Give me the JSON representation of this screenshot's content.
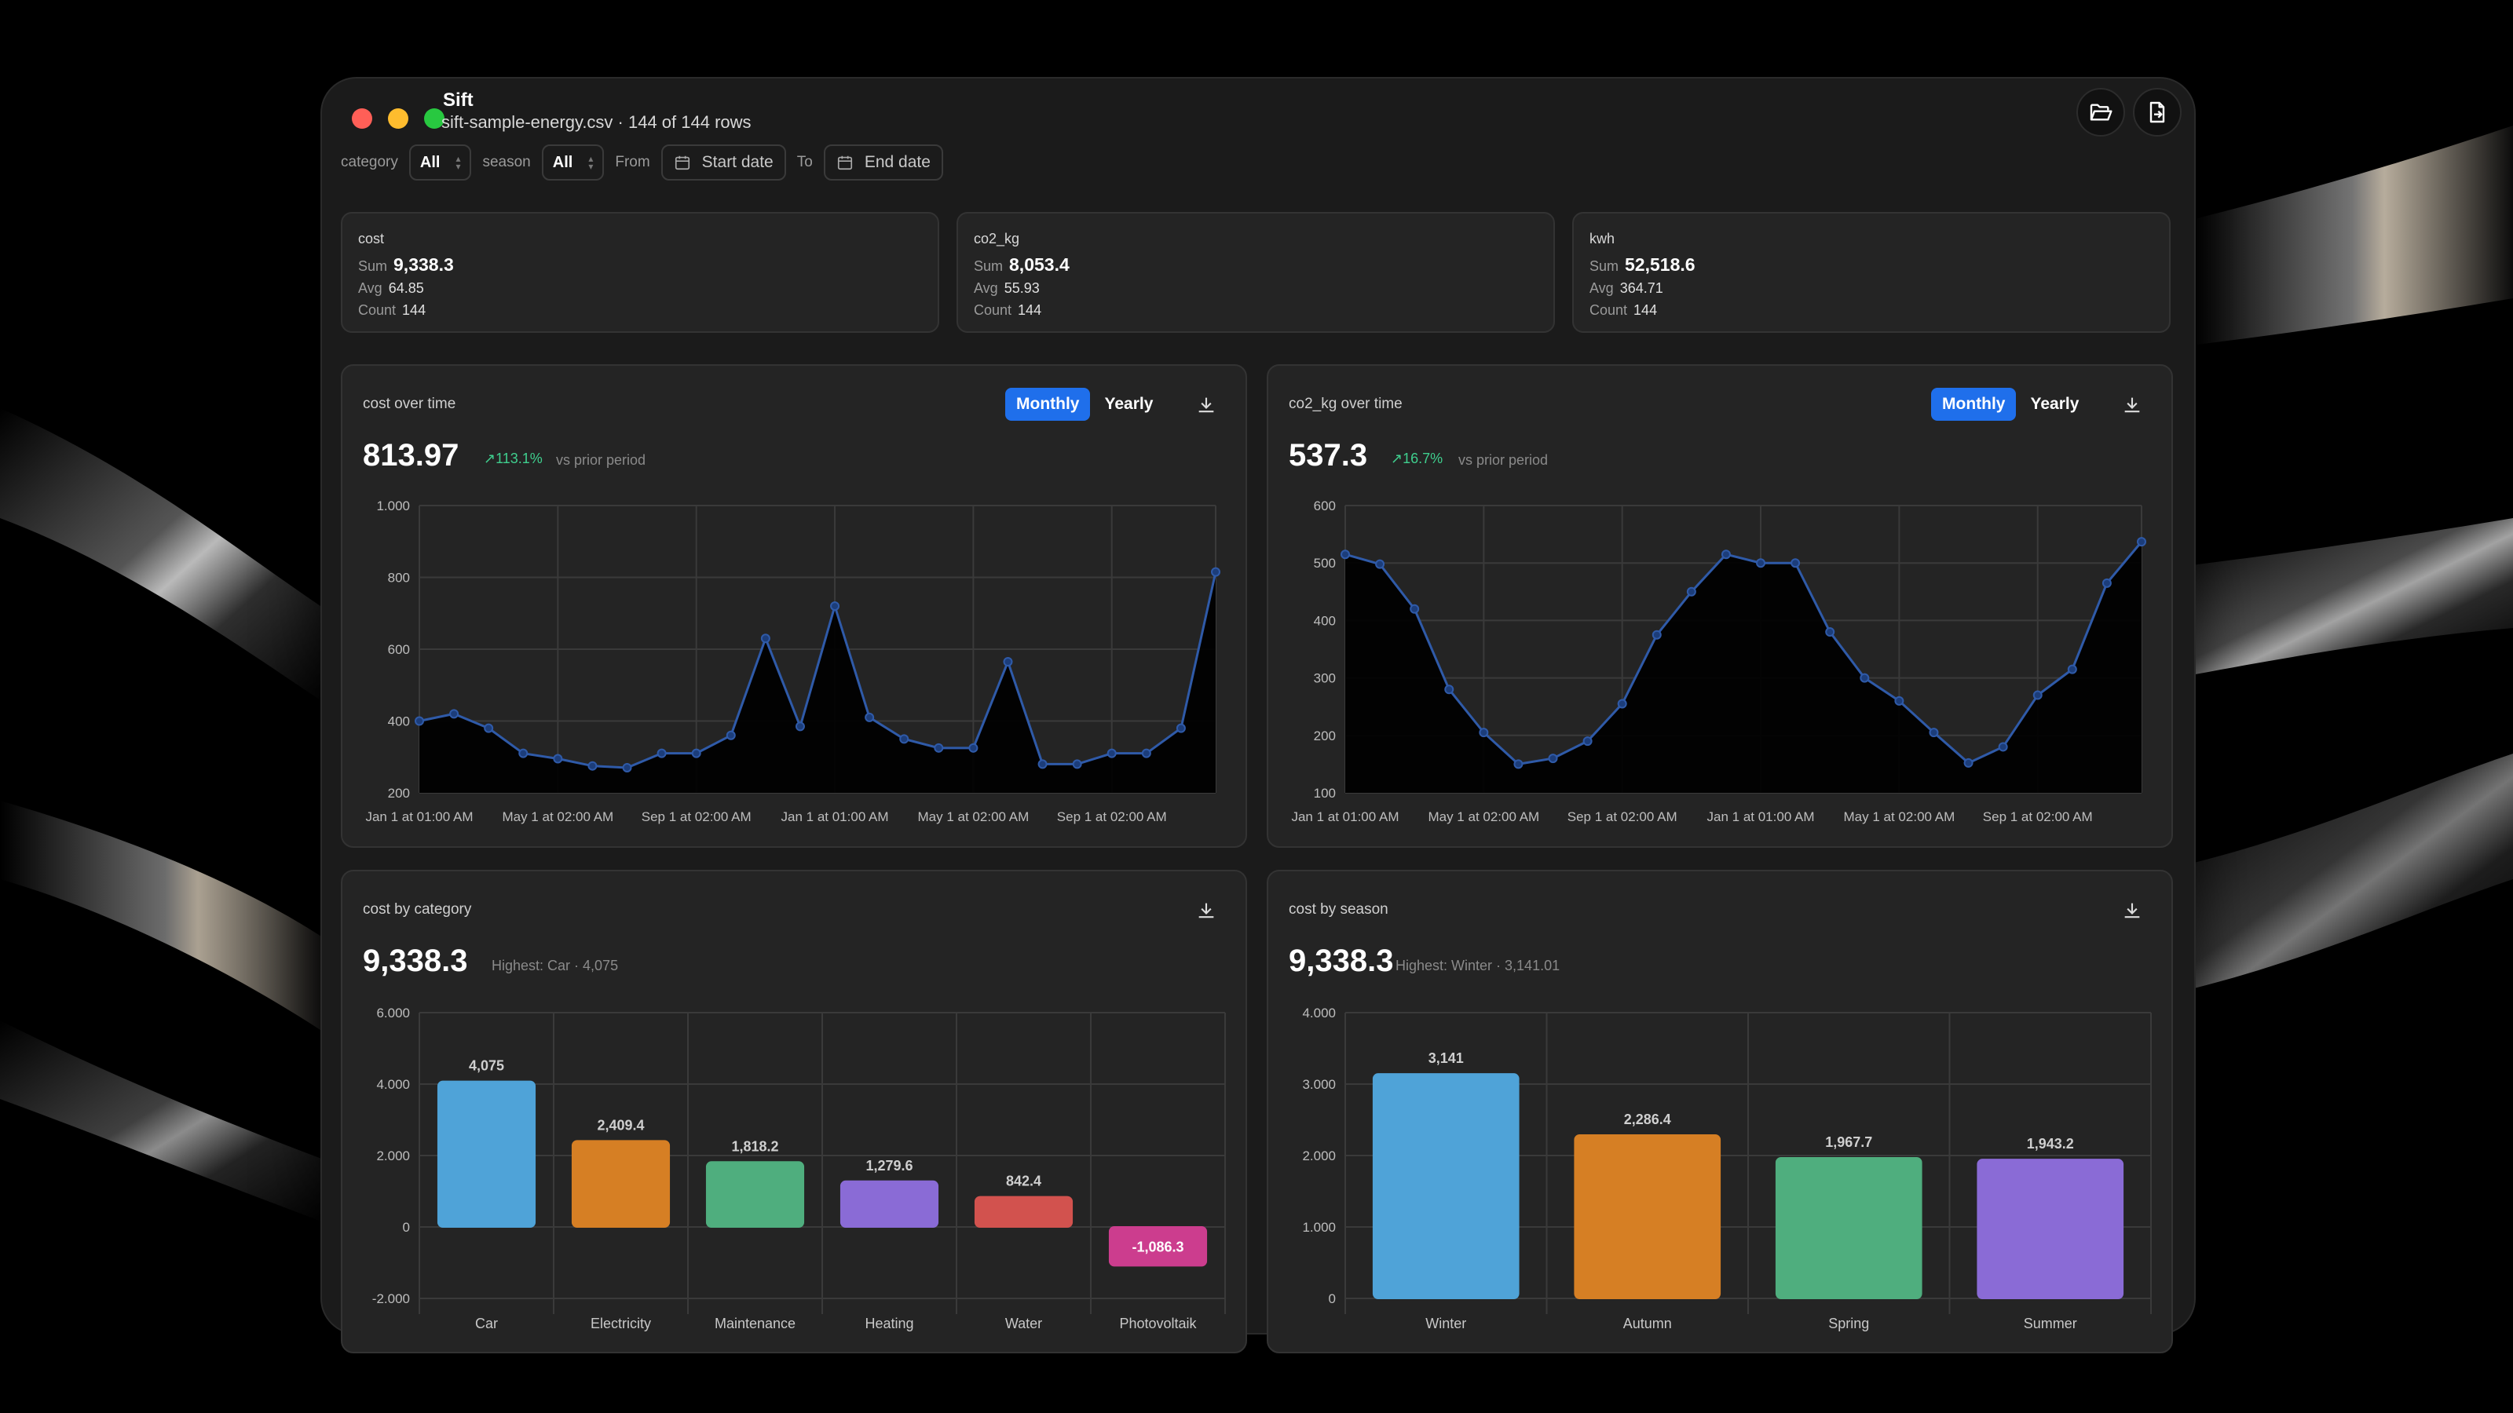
{
  "window": {
    "title": "Sift",
    "subtitle": "sift-sample-energy.csv · 144 of 144 rows"
  },
  "filters": {
    "category_label": "category",
    "category_value": "All",
    "season_label": "season",
    "season_value": "All",
    "from_label": "From",
    "start_date": "Start date",
    "to_label": "To",
    "end_date": "End date"
  },
  "toolbar": {
    "open_icon": "folder-open-icon",
    "export_icon": "file-export-icon"
  },
  "stats": [
    {
      "name": "cost",
      "sum_label": "Sum",
      "sum": "9,338.3",
      "avg_label": "Avg",
      "avg": "64.85",
      "count_label": "Count",
      "count": "144"
    },
    {
      "name": "co2_kg",
      "sum_label": "Sum",
      "sum": "8,053.4",
      "avg_label": "Avg",
      "avg": "55.93",
      "count_label": "Count",
      "count": "144"
    },
    {
      "name": "kwh",
      "sum_label": "Sum",
      "sum": "52,518.6",
      "avg_label": "Avg",
      "avg": "364.71",
      "count_label": "Count",
      "count": "144"
    }
  ],
  "toggle": {
    "monthly": "Monthly",
    "yearly": "Yearly"
  },
  "colors": {
    "accent": "#1f6feb",
    "positive": "#3fcf8e",
    "line": "#2f5aa8",
    "bars": [
      "#4fa3d8",
      "#d67f24",
      "#4fae7e",
      "#8a6bd6",
      "#d2524e",
      "#cc3d8e"
    ]
  },
  "chart_data": [
    {
      "type": "area",
      "title": "cost over time",
      "headline": "813.97",
      "delta": "113.1%",
      "delta_note": "vs prior period",
      "x_ticks": [
        "Jan 1 at 01:00 AM",
        "May 1 at 02:00 AM",
        "Sep 1 at 02:00 AM",
        "Jan 1 at 01:00 AM",
        "May 1 at 02:00 AM",
        "Sep 1 at 02:00 AM"
      ],
      "y_ticks": [
        "1.000",
        "800",
        "600",
        "400",
        "200"
      ],
      "ylim": [
        200,
        1000
      ],
      "grid": true,
      "values": [
        400,
        420,
        380,
        310,
        295,
        275,
        270,
        310,
        310,
        360,
        630,
        385,
        720,
        410,
        350,
        325,
        325,
        565,
        280,
        280,
        310,
        310,
        380,
        815
      ]
    },
    {
      "type": "area",
      "title": "co2_kg over time",
      "headline": "537.3",
      "delta": "16.7%",
      "delta_note": "vs prior period",
      "x_ticks": [
        "Jan 1 at 01:00 AM",
        "May 1 at 02:00 AM",
        "Sep 1 at 02:00 AM",
        "Jan 1 at 01:00 AM",
        "May 1 at 02:00 AM",
        "Sep 1 at 02:00 AM"
      ],
      "y_ticks": [
        "600",
        "500",
        "400",
        "300",
        "200",
        "100"
      ],
      "ylim": [
        100,
        600
      ],
      "grid": true,
      "values": [
        515,
        498,
        420,
        280,
        205,
        150,
        160,
        190,
        255,
        375,
        450,
        515,
        500,
        500,
        380,
        300,
        260,
        205,
        152,
        180,
        270,
        315,
        465,
        537
      ]
    },
    {
      "type": "bar",
      "title": "cost by category",
      "headline": "9,338.3",
      "highlight": "Highest: Car · 4,075",
      "categories": [
        "Car",
        "Electricity",
        "Maintenance",
        "Heating",
        "Water",
        "Photovoltaik"
      ],
      "values": [
        4075,
        2409.4,
        1818.2,
        1279.6,
        842.4,
        -1086.3
      ],
      "labels": [
        "4,075",
        "2,409.4",
        "1,818.2",
        "1,279.6",
        "842.4",
        "-1,086.3"
      ],
      "y_ticks": [
        "6.000",
        "4.000",
        "2.000",
        "0",
        "-2.000"
      ],
      "ylim": [
        -2000,
        6000
      ],
      "grid": true
    },
    {
      "type": "bar",
      "title": "cost by season",
      "headline": "9,338.3",
      "highlight": "Highest: Winter · 3,141.01",
      "categories": [
        "Winter",
        "Autumn",
        "Spring",
        "Summer"
      ],
      "values": [
        3141,
        2286.4,
        1967.7,
        1943.2
      ],
      "labels": [
        "3,141",
        "2,286.4",
        "1,967.7",
        "1,943.2"
      ],
      "y_ticks": [
        "4.000",
        "3.000",
        "2.000",
        "1.000",
        "0"
      ],
      "ylim": [
        0,
        4000
      ],
      "grid": true
    }
  ]
}
